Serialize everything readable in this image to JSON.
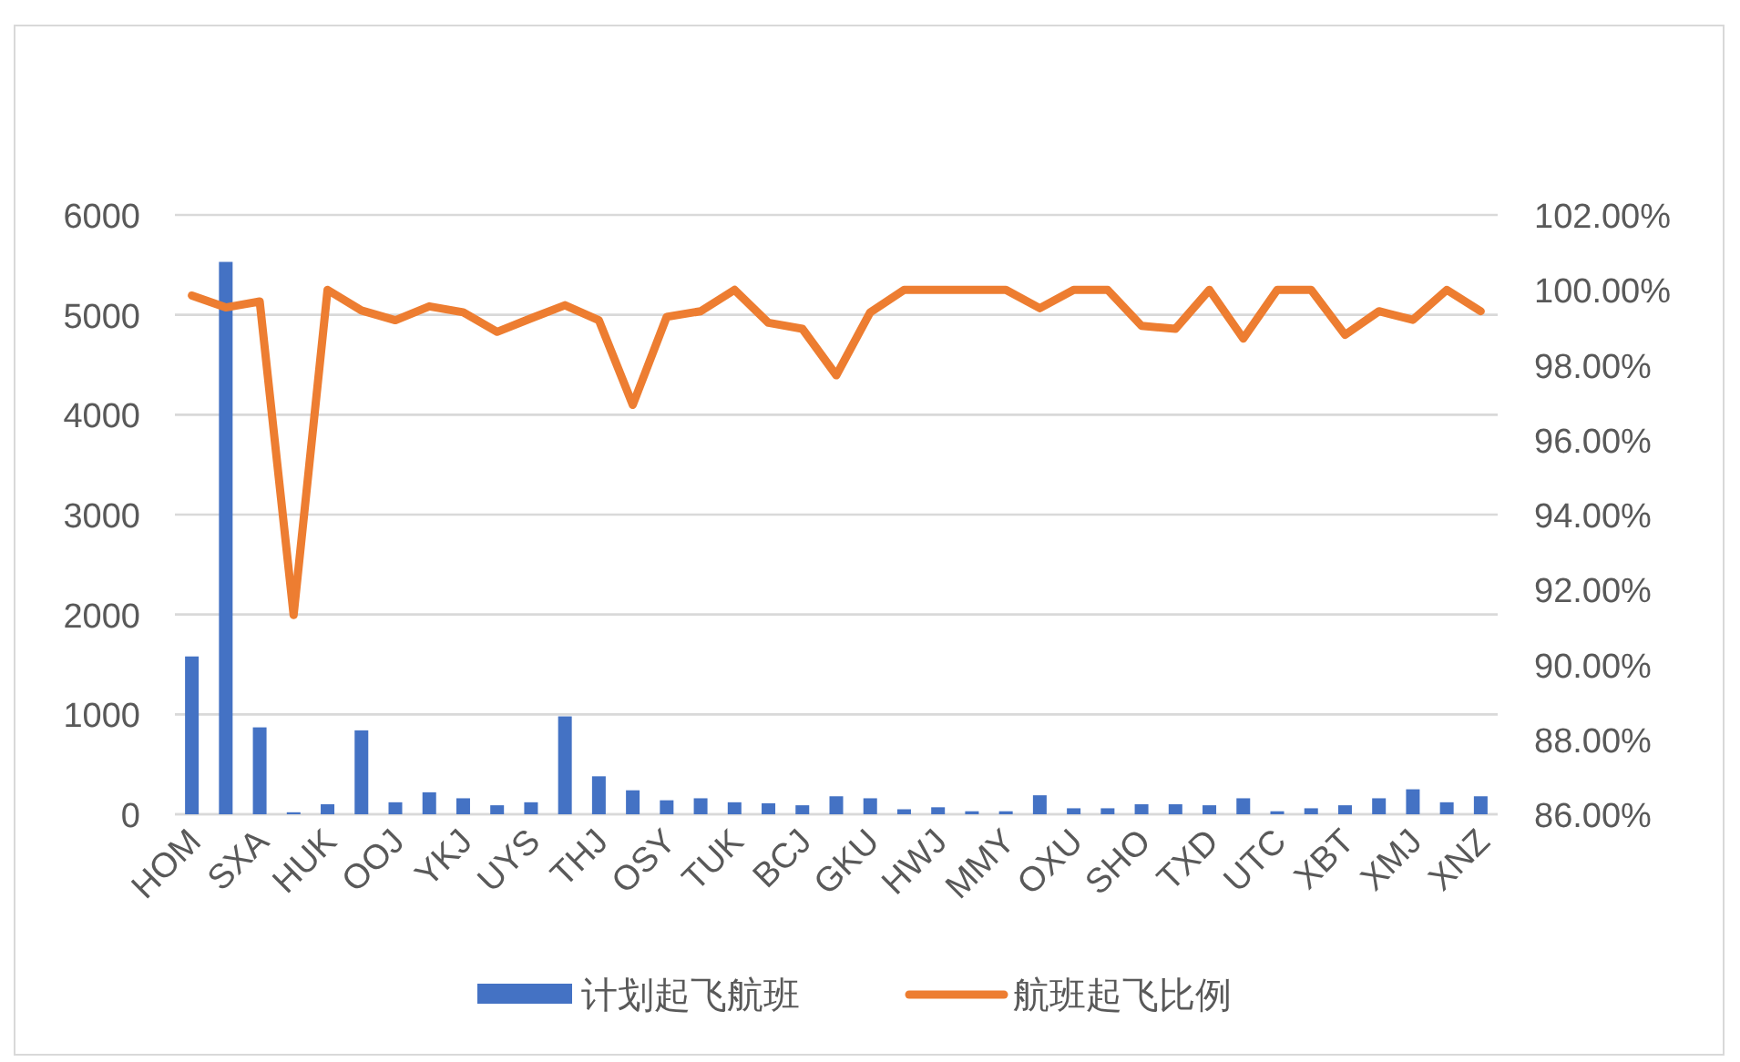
{
  "chart_data": {
    "type": "bar",
    "categories": [
      "HOM",
      null,
      "SXA",
      null,
      "HUK",
      null,
      "OOJ",
      null,
      "YKJ",
      null,
      "UYS",
      null,
      "THJ",
      null,
      "OSY",
      null,
      "TUK",
      null,
      "BCJ",
      null,
      "GKU",
      null,
      "HWJ",
      null,
      "MMY",
      null,
      "OXU",
      null,
      "SHO",
      null,
      "TXD",
      null,
      "UTC",
      null,
      "XBT",
      null,
      "XMJ",
      null,
      "XNZ"
    ],
    "series": [
      {
        "name": "计划起飞航班",
        "color": "#4472c4",
        "values": [
          1580,
          5530,
          870,
          20,
          100,
          840,
          120,
          220,
          160,
          90,
          120,
          980,
          380,
          240,
          140,
          160,
          120,
          110,
          90,
          180,
          160,
          50,
          70,
          30,
          30,
          190,
          60,
          60,
          100,
          100,
          90,
          160,
          30,
          60,
          90,
          160,
          250,
          120,
          180
        ]
      },
      {
        "name": "航班起飞比例",
        "type": "line",
        "axis": "y2",
        "color": "#ed7d31",
        "values": [
          99.85,
          99.53,
          99.69,
          91.32,
          100,
          99.45,
          99.19,
          99.56,
          99.4,
          98.88,
          99.24,
          99.59,
          99.19,
          96.93,
          99.28,
          99.43,
          100,
          99.12,
          98.96,
          97.72,
          99.4,
          100,
          100,
          100,
          100,
          99.51,
          100,
          100,
          99.04,
          98.96,
          100,
          98.7,
          100,
          100,
          98.8,
          99.43,
          99.2,
          100,
          99.43
        ]
      }
    ],
    "ylim": [
      0,
      6000
    ],
    "yticks": [
      0,
      1000,
      2000,
      3000,
      4000,
      5000,
      6000
    ],
    "y2lim": [
      86,
      102
    ],
    "y2ticks": [
      {
        "value": 86,
        "label": "86.00%"
      },
      {
        "value": 88,
        "label": "88.00%"
      },
      {
        "value": 90,
        "label": "90.00%"
      },
      {
        "value": 92,
        "label": "92.00%"
      },
      {
        "value": 94,
        "label": "94.00%"
      },
      {
        "value": 96,
        "label": "96.00%"
      },
      {
        "value": 98,
        "label": "98.00%"
      },
      {
        "value": 100,
        "label": "100.00%"
      },
      {
        "value": 102,
        "label": "102.00%"
      }
    ],
    "grid": "y",
    "legend": "bottom"
  }
}
